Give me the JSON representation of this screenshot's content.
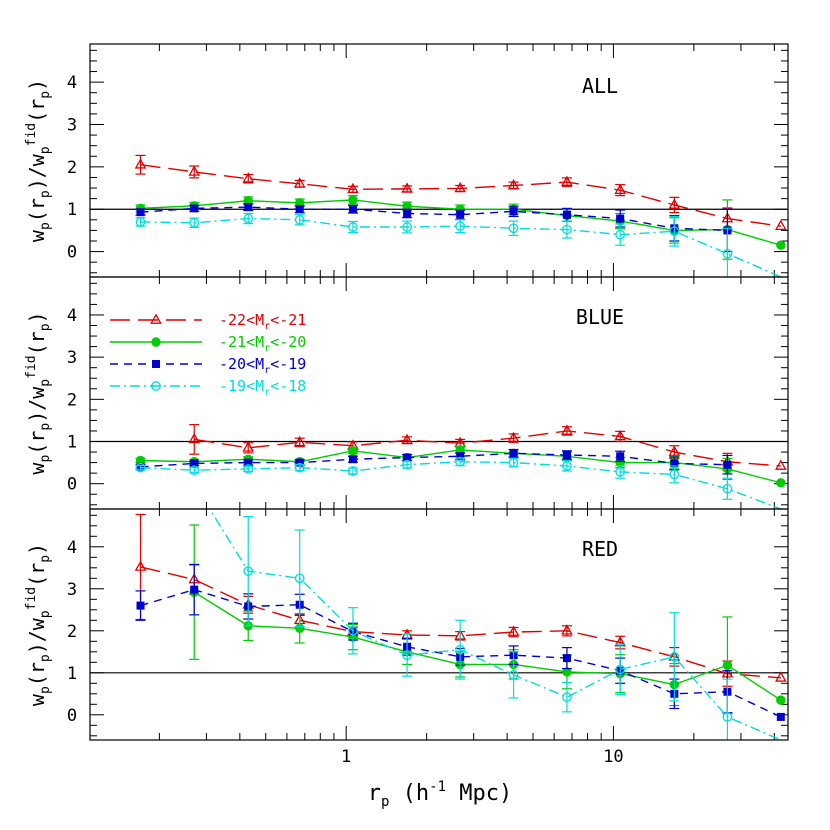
{
  "chart_data": {
    "type": "line",
    "x_scale": "log",
    "x_tick_labels": [
      "1",
      "10"
    ],
    "y_tick_labels": [
      "0",
      "1",
      "2",
      "3",
      "4"
    ],
    "xlim": [
      0.11,
      45
    ],
    "ylim": [
      -0.6,
      4.9
    ],
    "xlabel": {
      "main": "r",
      "sub": "p",
      "rest": " (h",
      "sup": "-1",
      "rest2": " Mpc)"
    },
    "ylabel": "w_p(r_p)/w_p^fid(r_p)",
    "reference_line": 1,
    "x": [
      0.17,
      0.27,
      0.43,
      0.67,
      1.06,
      1.69,
      2.67,
      4.23,
      6.7,
      10.6,
      16.9,
      26.7,
      42.3
    ],
    "series_styles": [
      {
        "key": "s22",
        "color": "#e00000",
        "marker": "triangle-open",
        "dash": "20,8"
      },
      {
        "key": "s21",
        "color": "#00cc00",
        "marker": "circle-filled",
        "dash": ""
      },
      {
        "key": "s20",
        "color": "#0000d0",
        "marker": "square-filled",
        "dash": "8,6"
      },
      {
        "key": "s19",
        "color": "#00dddd",
        "marker": "circle-open",
        "dash": "10,4,2,4"
      }
    ],
    "legend": [
      {
        "key": "s22",
        "prefix": "-22<M",
        "sub": "r",
        "suffix": "<-21"
      },
      {
        "key": "s21",
        "prefix": "-21<M",
        "sub": "r",
        "suffix": "<-20"
      },
      {
        "key": "s20",
        "prefix": "-20<M",
        "sub": "r",
        "suffix": "<-19"
      },
      {
        "key": "s19",
        "prefix": "-19<M",
        "sub": "r",
        "suffix": "<-18"
      }
    ],
    "panels": [
      {
        "label": "ALL",
        "series": {
          "s22": {
            "y": [
              2.05,
              1.88,
              1.72,
              1.6,
              1.47,
              1.48,
              1.49,
              1.56,
              1.64,
              1.45,
              1.1,
              0.78,
              0.6
            ],
            "err": [
              0.22,
              0.14,
              0.1,
              0.08,
              0.07,
              0.07,
              0.07,
              0.08,
              0.1,
              0.13,
              0.18,
              0.25,
              null
            ]
          },
          "s21": {
            "y": [
              1.02,
              1.08,
              1.2,
              1.15,
              1.22,
              1.07,
              1.0,
              1.0,
              0.85,
              0.72,
              0.5,
              0.52,
              0.15
            ],
            "err": [
              0.08,
              0.08,
              0.09,
              0.09,
              0.1,
              0.1,
              0.1,
              0.12,
              0.14,
              0.18,
              0.3,
              0.7,
              null
            ]
          },
          "s20": {
            "y": [
              0.93,
              1.02,
              1.05,
              1.0,
              1.0,
              0.9,
              0.87,
              0.95,
              0.87,
              0.78,
              0.55,
              0.5,
              null
            ],
            "err": [
              0.07,
              0.07,
              0.08,
              0.08,
              0.09,
              0.1,
              0.11,
              0.12,
              0.15,
              0.2,
              0.3,
              0.5,
              null
            ]
          },
          "s19": {
            "y": [
              0.7,
              0.68,
              0.78,
              0.75,
              0.58,
              0.58,
              0.6,
              0.55,
              0.52,
              0.4,
              0.48,
              -0.05,
              -0.6
            ],
            "err": [
              0.1,
              0.11,
              0.12,
              0.12,
              0.13,
              0.14,
              0.15,
              0.17,
              0.2,
              0.25,
              0.35,
              0.6,
              null
            ]
          }
        }
      },
      {
        "label": "BLUE",
        "series": {
          "s22": {
            "y": [
              null,
              1.05,
              0.85,
              0.98,
              0.9,
              1.03,
              0.96,
              1.08,
              1.25,
              1.12,
              0.75,
              0.52,
              0.42
            ],
            "err": [
              null,
              0.35,
              0.12,
              0.1,
              0.09,
              0.08,
              0.09,
              0.1,
              0.1,
              0.12,
              0.15,
              0.2,
              null
            ]
          },
          "s21": {
            "y": [
              0.55,
              0.52,
              0.58,
              0.52,
              0.78,
              0.62,
              0.8,
              0.72,
              0.65,
              0.5,
              0.5,
              0.35,
              0.02
            ],
            "err": [
              0.05,
              0.05,
              0.06,
              0.06,
              0.07,
              0.07,
              0.08,
              0.09,
              0.1,
              0.12,
              0.15,
              0.25,
              null
            ]
          },
          "s20": {
            "y": [
              0.4,
              0.48,
              0.5,
              0.5,
              0.58,
              0.62,
              0.65,
              0.72,
              0.68,
              0.65,
              0.48,
              0.45,
              null
            ],
            "err": [
              0.05,
              0.05,
              0.06,
              0.06,
              0.07,
              0.07,
              0.08,
              0.09,
              0.1,
              0.12,
              0.15,
              0.22,
              null
            ]
          },
          "s19": {
            "y": [
              0.38,
              0.32,
              0.35,
              0.38,
              0.3,
              0.45,
              0.52,
              0.5,
              0.42,
              0.28,
              0.22,
              -0.12,
              -0.6
            ],
            "err": [
              0.05,
              0.06,
              0.06,
              0.07,
              0.07,
              0.08,
              0.09,
              0.1,
              0.12,
              0.15,
              0.2,
              0.25,
              null
            ]
          }
        }
      },
      {
        "label": "RED",
        "series": {
          "s22": {
            "y": [
              3.52,
              3.22,
              2.62,
              2.25,
              1.98,
              1.9,
              1.88,
              1.97,
              2.0,
              1.72,
              1.38,
              0.98,
              0.88
            ],
            "err": [
              1.25,
              0.35,
              0.2,
              0.15,
              0.11,
              0.1,
              0.1,
              0.11,
              0.12,
              0.15,
              0.22,
              0.3,
              null
            ]
          },
          "s21": {
            "y": [
              null,
              2.92,
              2.12,
              2.06,
              1.85,
              1.5,
              1.2,
              1.2,
              1.02,
              0.98,
              0.72,
              1.18,
              0.35
            ],
            "err": [
              null,
              1.6,
              0.35,
              0.35,
              0.3,
              0.3,
              0.3,
              0.35,
              0.4,
              0.45,
              0.5,
              1.15,
              null
            ]
          },
          "s20": {
            "y": [
              2.6,
              2.98,
              2.58,
              2.62,
              1.98,
              1.62,
              1.38,
              1.42,
              1.35,
              1.05,
              0.5,
              0.55,
              -0.05
            ],
            "err": [
              0.35,
              0.6,
              0.3,
              0.25,
              0.2,
              0.2,
              0.2,
              0.22,
              0.25,
              0.3,
              0.35,
              0.5,
              null
            ]
          },
          "s19": {
            "y": [
              null,
              5.5,
              3.42,
              3.25,
              2.0,
              1.42,
              1.55,
              0.95,
              0.42,
              1.08,
              1.38,
              -0.05,
              -0.6
            ],
            "err": [
              null,
              null,
              1.3,
              1.15,
              0.55,
              0.5,
              0.7,
              0.55,
              0.35,
              0.6,
              1.05,
              0.9,
              null
            ]
          }
        }
      }
    ]
  }
}
